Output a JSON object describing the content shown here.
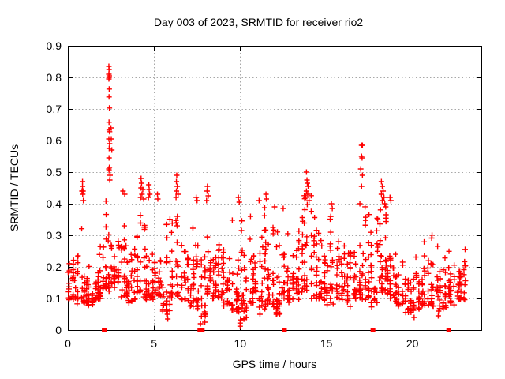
{
  "page": {
    "background": "#ffffff"
  },
  "chart_data": {
    "type": "scatter",
    "title": "Day 003 of 2023, SRMTID for receiver rio2",
    "xlabel": "GPS time / hours",
    "ylabel": "SRMTID / TECUs",
    "xlim": [
      0,
      24
    ],
    "ylim": [
      0,
      0.9
    ],
    "xtick_values": [
      0,
      5,
      10,
      15,
      20
    ],
    "xtick_labels": [
      "0",
      "5",
      "10",
      "15",
      "20"
    ],
    "ytick_values": [
      0,
      0.1,
      0.2,
      0.3,
      0.4,
      0.5,
      0.6,
      0.7,
      0.8,
      0.9
    ],
    "ytick_labels": [
      "0",
      "0.1",
      "0.2",
      "0.3",
      "0.4",
      "0.5",
      "0.6",
      "0.7",
      "0.8",
      "0.9"
    ],
    "grid": {
      "show": true,
      "style": "dotted",
      "color": "#a8a8a8"
    },
    "legend": {
      "show": false
    },
    "frame_color": "#000000",
    "text_color": "#000000",
    "marker_color": "#ff0000",
    "series": [
      {
        "name": "plus-markers",
        "marker": "plus",
        "color": "#ff0000",
        "seed": 20230103,
        "envelope_bins": [
          [
            0.0,
            0.5,
            0.1,
            0.26,
            28
          ],
          [
            0.5,
            1.0,
            0.09,
            0.35,
            28
          ],
          [
            1.0,
            1.5,
            0.08,
            0.3,
            28
          ],
          [
            1.5,
            2.0,
            0.1,
            0.32,
            28
          ],
          [
            2.0,
            2.5,
            0.13,
            0.52,
            32
          ],
          [
            2.5,
            3.0,
            0.14,
            0.46,
            30
          ],
          [
            3.0,
            3.5,
            0.11,
            0.4,
            28
          ],
          [
            3.5,
            4.0,
            0.09,
            0.3,
            26
          ],
          [
            4.0,
            4.5,
            0.11,
            0.43,
            28
          ],
          [
            4.5,
            5.0,
            0.1,
            0.42,
            28
          ],
          [
            5.0,
            5.5,
            0.11,
            0.36,
            26
          ],
          [
            5.5,
            6.0,
            0.06,
            0.4,
            26
          ],
          [
            6.0,
            6.5,
            0.1,
            0.45,
            28
          ],
          [
            6.5,
            7.0,
            0.09,
            0.33,
            26
          ],
          [
            7.0,
            7.5,
            0.08,
            0.4,
            26
          ],
          [
            7.5,
            8.0,
            0.05,
            0.43,
            28
          ],
          [
            8.0,
            8.5,
            0.1,
            0.43,
            28
          ],
          [
            8.5,
            9.0,
            0.1,
            0.4,
            26
          ],
          [
            9.0,
            9.5,
            0.08,
            0.32,
            26
          ],
          [
            9.5,
            10.0,
            0.06,
            0.4,
            28
          ],
          [
            10.0,
            10.5,
            0.04,
            0.37,
            28
          ],
          [
            10.5,
            11.0,
            0.09,
            0.35,
            26
          ],
          [
            11.0,
            11.5,
            0.07,
            0.39,
            28
          ],
          [
            11.5,
            12.0,
            0.08,
            0.38,
            26
          ],
          [
            12.0,
            12.5,
            0.05,
            0.37,
            28
          ],
          [
            12.5,
            13.0,
            0.08,
            0.37,
            26
          ],
          [
            13.0,
            13.5,
            0.1,
            0.35,
            26
          ],
          [
            13.5,
            14.0,
            0.12,
            0.46,
            30
          ],
          [
            14.0,
            14.5,
            0.1,
            0.43,
            28
          ],
          [
            14.5,
            15.0,
            0.1,
            0.35,
            26
          ],
          [
            15.0,
            15.5,
            0.08,
            0.39,
            26
          ],
          [
            15.5,
            16.0,
            0.1,
            0.36,
            26
          ],
          [
            16.0,
            16.5,
            0.08,
            0.34,
            26
          ],
          [
            16.5,
            17.0,
            0.1,
            0.38,
            26
          ],
          [
            17.0,
            17.5,
            0.1,
            0.46,
            28
          ],
          [
            17.5,
            18.0,
            0.08,
            0.38,
            26
          ],
          [
            18.0,
            18.5,
            0.12,
            0.45,
            30
          ],
          [
            18.5,
            19.0,
            0.1,
            0.42,
            28
          ],
          [
            19.0,
            19.5,
            0.08,
            0.33,
            26
          ],
          [
            19.5,
            20.0,
            0.06,
            0.31,
            26
          ],
          [
            20.0,
            20.5,
            0.06,
            0.3,
            26
          ],
          [
            20.5,
            21.0,
            0.08,
            0.29,
            26
          ],
          [
            21.0,
            21.5,
            0.08,
            0.3,
            26
          ],
          [
            21.5,
            22.0,
            0.07,
            0.31,
            26
          ],
          [
            22.0,
            22.5,
            0.08,
            0.29,
            26
          ],
          [
            22.5,
            23.2,
            0.1,
            0.32,
            34
          ]
        ],
        "spike_points": [
          [
            0.82,
            0.44
          ],
          [
            0.85,
            0.47
          ],
          [
            0.85,
            0.455
          ],
          [
            0.88,
            0.44
          ],
          [
            0.86,
            0.43
          ],
          [
            0.9,
            0.41
          ],
          [
            2.38,
            0.835
          ],
          [
            2.39,
            0.825
          ],
          [
            2.38,
            0.81
          ],
          [
            2.4,
            0.805
          ],
          [
            2.39,
            0.8
          ],
          [
            2.38,
            0.795
          ],
          [
            2.4,
            0.763
          ],
          [
            2.39,
            0.738
          ],
          [
            2.41,
            0.703
          ],
          [
            2.39,
            0.658
          ],
          [
            2.4,
            0.633
          ],
          [
            2.42,
            0.628
          ],
          [
            2.38,
            0.605
          ],
          [
            2.42,
            0.59
          ],
          [
            2.4,
            0.575
          ],
          [
            2.39,
            0.545
          ],
          [
            2.41,
            0.515
          ],
          [
            2.38,
            0.51
          ],
          [
            2.39,
            0.505
          ],
          [
            2.45,
            0.49
          ],
          [
            2.43,
            0.475
          ],
          [
            2.5,
            0.64
          ],
          [
            2.52,
            0.605
          ],
          [
            2.55,
            0.57
          ],
          [
            3.2,
            0.44
          ],
          [
            3.3,
            0.43
          ],
          [
            4.25,
            0.48
          ],
          [
            4.28,
            0.465
          ],
          [
            4.25,
            0.45
          ],
          [
            4.35,
            0.445
          ],
          [
            4.3,
            0.43
          ],
          [
            4.22,
            0.42
          ],
          [
            4.4,
            0.415
          ],
          [
            4.7,
            0.46
          ],
          [
            4.72,
            0.445
          ],
          [
            4.75,
            0.43
          ],
          [
            4.68,
            0.42
          ],
          [
            5.2,
            0.43
          ],
          [
            5.22,
            0.415
          ],
          [
            6.32,
            0.49
          ],
          [
            6.3,
            0.47
          ],
          [
            6.35,
            0.455
          ],
          [
            6.3,
            0.44
          ],
          [
            6.4,
            0.43
          ],
          [
            6.28,
            0.42
          ],
          [
            7.45,
            0.42
          ],
          [
            7.5,
            0.41
          ],
          [
            8.1,
            0.455
          ],
          [
            8.08,
            0.44
          ],
          [
            8.15,
            0.425
          ],
          [
            8.05,
            0.41
          ],
          [
            9.9,
            0.42
          ],
          [
            9.95,
            0.405
          ],
          [
            10.6,
            0.36
          ],
          [
            11.1,
            0.41
          ],
          [
            11.5,
            0.43
          ],
          [
            11.52,
            0.415
          ],
          [
            12.0,
            0.39
          ],
          [
            12.5,
            0.385
          ],
          [
            13.85,
            0.5
          ],
          [
            13.88,
            0.475
          ],
          [
            13.9,
            0.465
          ],
          [
            13.95,
            0.455
          ],
          [
            13.85,
            0.44
          ],
          [
            13.92,
            0.43
          ],
          [
            13.8,
            0.42
          ],
          [
            14.0,
            0.41
          ],
          [
            15.3,
            0.4
          ],
          [
            15.35,
            0.385
          ],
          [
            17.05,
            0.585
          ],
          [
            17.1,
            0.585
          ],
          [
            17.05,
            0.55
          ],
          [
            17.08,
            0.545
          ],
          [
            17.0,
            0.51
          ],
          [
            17.1,
            0.49
          ],
          [
            17.05,
            0.455
          ],
          [
            16.95,
            0.4
          ],
          [
            18.2,
            0.47
          ],
          [
            18.25,
            0.455
          ],
          [
            18.3,
            0.44
          ],
          [
            18.2,
            0.43
          ],
          [
            18.35,
            0.42
          ],
          [
            18.25,
            0.41
          ],
          [
            18.4,
            0.4
          ],
          [
            18.45,
            0.39
          ],
          [
            18.7,
            0.42
          ],
          [
            18.75,
            0.41
          ]
        ],
        "low_points": [
          [
            5.75,
            0.06
          ],
          [
            5.78,
            0.05
          ],
          [
            5.8,
            0.035
          ],
          [
            7.7,
            0.02
          ],
          [
            7.95,
            0.025
          ],
          [
            10.0,
            0.012
          ],
          [
            10.0,
            0.022
          ],
          [
            10.02,
            0.032
          ],
          [
            11.15,
            0.05
          ],
          [
            12.1,
            0.05
          ],
          [
            12.12,
            0.07
          ],
          [
            20.1,
            0.04
          ],
          [
            21.5,
            0.045
          ],
          [
            21.52,
            0.06
          ]
        ]
      },
      {
        "name": "square-markers",
        "marker": "filled-square",
        "color": "#ff0000",
        "points": [
          [
            2.11,
            0
          ],
          [
            7.66,
            0
          ],
          [
            7.8,
            0
          ],
          [
            12.57,
            0
          ],
          [
            17.71,
            0
          ],
          [
            22.11,
            0
          ]
        ]
      }
    ]
  }
}
